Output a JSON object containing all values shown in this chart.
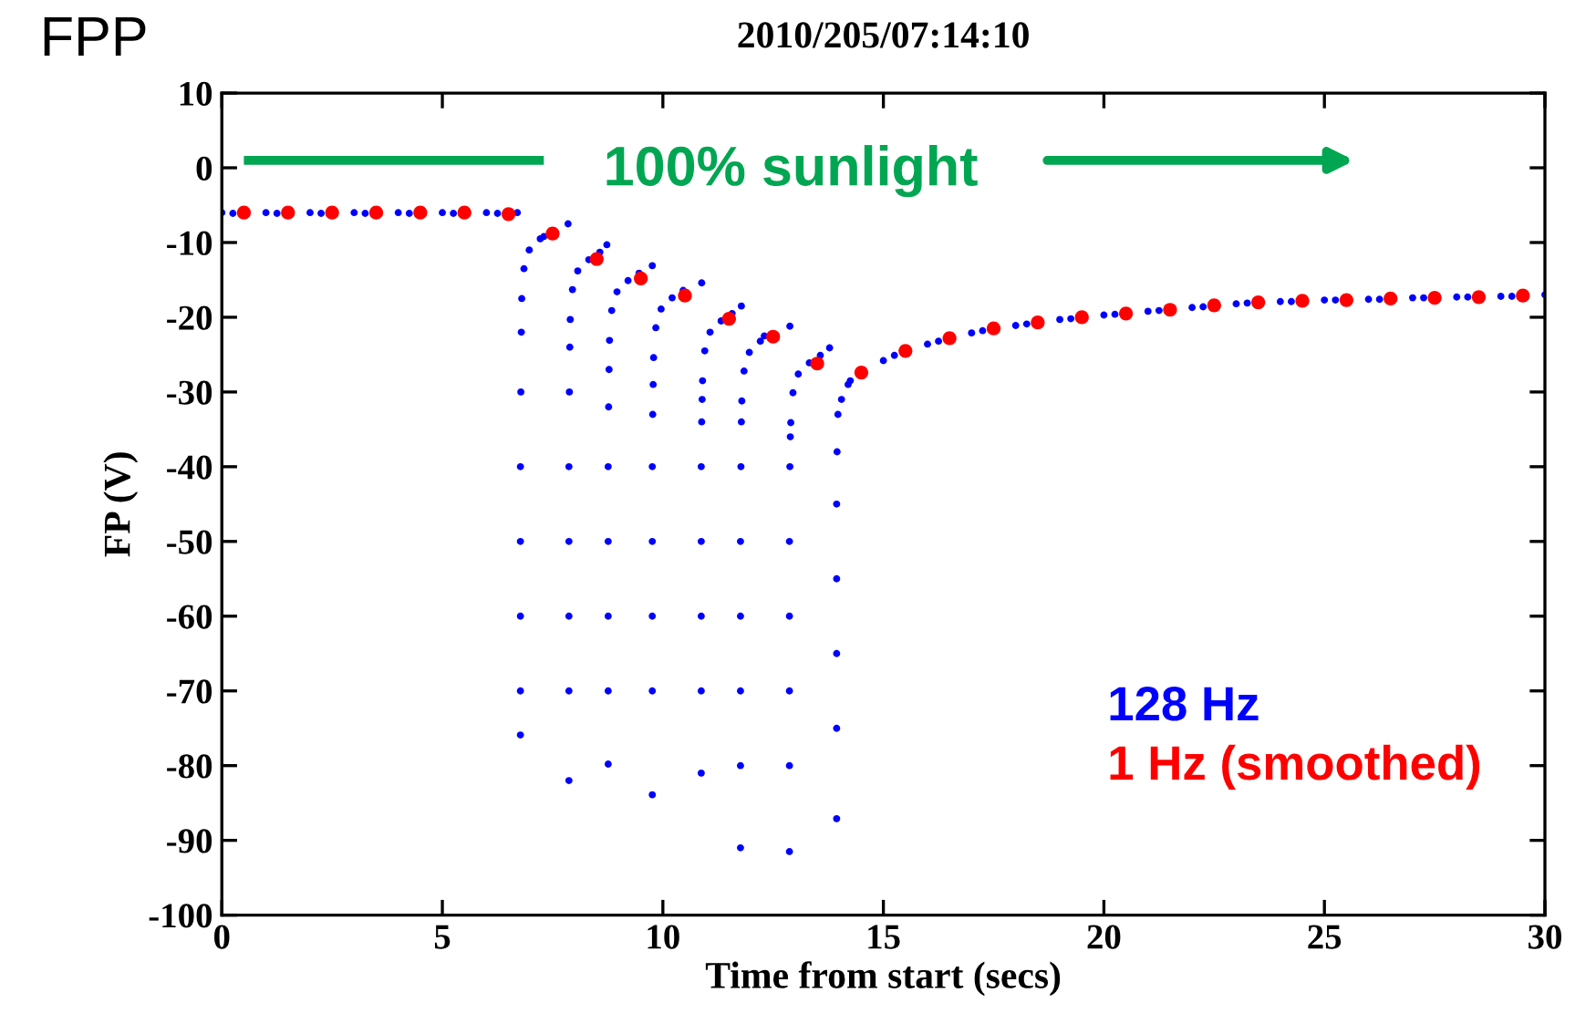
{
  "chart_data": {
    "type": "scatter",
    "title": "2010/205/07:14:10",
    "xlabel": "Time from start (secs)",
    "ylabel": "FP (V)",
    "annotations": [
      "FPP",
      "100% sunlight"
    ],
    "xlim": [
      0,
      30
    ],
    "xticks": [
      0,
      5,
      10,
      15,
      20,
      25,
      30
    ],
    "ylim": [
      -100,
      10
    ],
    "yticks": [
      -100,
      -90,
      -80,
      -70,
      -60,
      -50,
      -40,
      -30,
      -20,
      -10,
      0,
      10
    ],
    "grid": false,
    "legend": "bottom right",
    "marker": "circle",
    "series": [
      {
        "name": "128 Hz",
        "color": "#0000ff",
        "x": [
          0,
          0.25,
          1,
          1.25,
          2,
          2.25,
          3,
          3.25,
          4,
          4.25,
          5,
          5.25,
          6,
          6.25,
          6.7,
          6.77,
          6.77,
          6.77,
          6.77,
          6.77,
          6.78,
          6.79,
          6.8,
          6.85,
          6.97,
          7.22,
          7.3,
          7.85,
          7.87,
          7.87,
          7.87,
          7.87,
          7.87,
          7.88,
          7.89,
          7.9,
          7.95,
          8.07,
          8.32,
          8.57,
          8.73,
          8.76,
          8.76,
          8.76,
          8.76,
          8.76,
          8.77,
          8.78,
          8.79,
          8.84,
          8.96,
          9.21,
          9.46,
          9.76,
          9.76,
          9.76,
          9.76,
          9.76,
          9.76,
          9.77,
          9.78,
          9.79,
          9.84,
          9.96,
          10.21,
          10.46,
          10.88,
          10.87,
          10.87,
          10.87,
          10.87,
          10.87,
          10.88,
          10.89,
          10.9,
          10.95,
          11.07,
          11.32,
          11.57,
          11.78,
          11.76,
          11.76,
          11.76,
          11.76,
          11.76,
          11.77,
          11.78,
          11.79,
          11.84,
          11.96,
          12.21,
          12.3,
          12.88,
          12.87,
          12.87,
          12.87,
          12.87,
          12.87,
          12.88,
          12.89,
          12.9,
          12.95,
          13.07,
          13.32,
          13.57,
          13.78,
          13.94,
          13.94,
          13.94,
          13.94,
          13.94,
          13.95,
          13.97,
          14.05,
          14.2,
          14.25,
          15,
          15.25,
          16,
          16.25,
          17,
          17.25,
          18,
          18.25,
          19,
          19.25,
          20,
          20.25,
          21,
          21.25,
          22,
          22.25,
          23,
          23.25,
          24,
          24.25,
          25,
          25.25,
          26,
          26.25,
          27,
          27.25,
          28,
          28.25,
          29,
          29.25,
          30
        ],
        "values": [
          -6,
          -6.1,
          -6,
          -6.1,
          -6,
          -6.1,
          -6,
          -6.1,
          -6,
          -6.1,
          -6,
          -6.1,
          -6,
          -6.1,
          -6,
          -75.9,
          -70,
          -60,
          -50,
          -40,
          -30,
          -22,
          -17.5,
          -13.5,
          -11,
          -9.5,
          -9.2,
          -7.5,
          -82,
          -70,
          -60,
          -50,
          -40,
          -30,
          -24,
          -20.3,
          -16.3,
          -13.8,
          -12.3,
          -11.3,
          -10.3,
          -79.8,
          -70,
          -60,
          -50,
          -40,
          -32,
          -27,
          -23.1,
          -19.1,
          -16.6,
          -15.1,
          -14.1,
          -13.1,
          -83.9,
          -70,
          -60,
          -50,
          -40,
          -33,
          -29,
          -25.4,
          -21.4,
          -18.9,
          -17.4,
          -16.4,
          -15.4,
          -81,
          -70,
          -60,
          -50,
          -40,
          -34,
          -31,
          -28.5,
          -24.5,
          -22,
          -20.5,
          -19.5,
          -18.5,
          -91,
          -80,
          -70,
          -60,
          -50,
          -40,
          -34,
          -31.2,
          -27.2,
          -24.7,
          -23.2,
          -22.5,
          -21.2,
          -91.5,
          -80,
          -70,
          -60,
          -50,
          -40,
          -36,
          -34.1,
          -30.1,
          -27.6,
          -26.1,
          -25.1,
          -24.1,
          -87.1,
          -75,
          -65,
          -55,
          -45,
          -38,
          -33,
          -31,
          -29,
          -28.5,
          -25.8,
          -25.1,
          -23.6,
          -23.2,
          -22.1,
          -21.8,
          -21.1,
          -20.9,
          -20.3,
          -20.2,
          -19.7,
          -19.6,
          -19.2,
          -19.1,
          -18.7,
          -18.6,
          -18.2,
          -18.1,
          -17.9,
          -17.9,
          -17.7,
          -17.7,
          -17.6,
          -17.6,
          -17.4,
          -17.4,
          -17.3,
          -17.3,
          -17.2,
          -17.2,
          -17
        ]
      },
      {
        "name": "1 Hz (smoothed)",
        "color": "#ff0000",
        "x": [
          0.5,
          1.5,
          2.5,
          3.5,
          4.5,
          5.5,
          6.5,
          7.5,
          8.5,
          9.5,
          10.5,
          11.5,
          12.5,
          13.5,
          14.5,
          15.5,
          16.5,
          17.5,
          18.5,
          19.5,
          20.5,
          21.5,
          22.5,
          23.5,
          24.5,
          25.5,
          26.5,
          27.5,
          28.5,
          29.5
        ],
        "values": [
          -6,
          -6,
          -6,
          -6,
          -6,
          -6,
          -6.2,
          -8.8,
          -12.2,
          -14.8,
          -17.1,
          -20.2,
          -22.6,
          -26.2,
          -27.4,
          -24.5,
          -22.8,
          -21.5,
          -20.7,
          -20,
          -19.5,
          -19,
          -18.4,
          -18,
          -17.8,
          -17.7,
          -17.5,
          -17.4,
          -17.3,
          -17.1
        ]
      }
    ]
  }
}
